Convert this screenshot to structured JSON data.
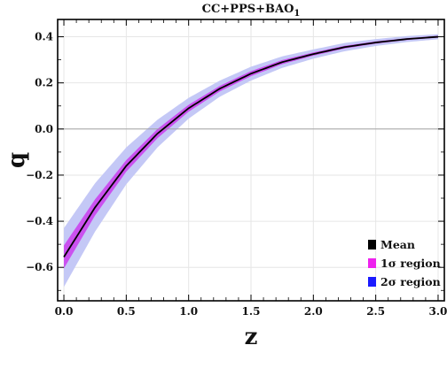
{
  "chart_data": {
    "type": "line",
    "title": "CC+PPS+BAO",
    "title_subscript": "1",
    "xlabel": "z",
    "ylabel": "q",
    "xlim": [
      -0.05,
      3.05
    ],
    "ylim": [
      -0.745,
      0.475
    ],
    "xticks": [
      0.0,
      0.5,
      1.0,
      1.5,
      2.0,
      2.5,
      3.0
    ],
    "xtick_labels": [
      "0.0",
      "0.5",
      "1.0",
      "1.5",
      "2.0",
      "2.5",
      "3.0"
    ],
    "yticks": [
      -0.6,
      -0.4,
      -0.2,
      0.0,
      0.2,
      0.4
    ],
    "ytick_labels": [
      "−0.6",
      "−0.4",
      "−0.2",
      "0.0",
      "0.2",
      "0.4"
    ],
    "grid": true,
    "reference_line_y": 0.0,
    "legend": {
      "position": "bottom-right",
      "entries": [
        {
          "label": "Mean",
          "color": "#000000"
        },
        {
          "label": "1σ region",
          "color": "#ee22ee"
        },
        {
          "label": "2σ region",
          "color": "#1a1aff"
        }
      ]
    },
    "x": [
      0.0,
      0.25,
      0.5,
      0.75,
      1.0,
      1.25,
      1.5,
      1.75,
      2.0,
      2.25,
      2.5,
      2.75,
      3.0
    ],
    "series": [
      {
        "name": "Mean",
        "color": "#000000",
        "values": [
          -0.555,
          -0.34,
          -0.16,
          -0.02,
          0.09,
          0.175,
          0.24,
          0.29,
          0.325,
          0.355,
          0.375,
          0.39,
          0.4
        ]
      },
      {
        "name": "1σ region",
        "color": "#cc33ee",
        "lower": [
          -0.605,
          -0.375,
          -0.185,
          -0.04,
          0.075,
          0.163,
          0.229,
          0.281,
          0.318,
          0.349,
          0.37,
          0.386,
          0.396
        ],
        "upper": [
          -0.505,
          -0.305,
          -0.135,
          0.0,
          0.105,
          0.187,
          0.251,
          0.299,
          0.332,
          0.361,
          0.38,
          0.394,
          0.404
        ]
      },
      {
        "name": "2σ region",
        "color": "#c4c8f6",
        "lower": [
          -0.685,
          -0.445,
          -0.24,
          -0.08,
          0.045,
          0.14,
          0.21,
          0.265,
          0.305,
          0.337,
          0.36,
          0.377,
          0.389
        ],
        "upper": [
          -0.43,
          -0.235,
          -0.08,
          0.04,
          0.135,
          0.21,
          0.27,
          0.315,
          0.345,
          0.373,
          0.39,
          0.403,
          0.411
        ]
      }
    ]
  }
}
